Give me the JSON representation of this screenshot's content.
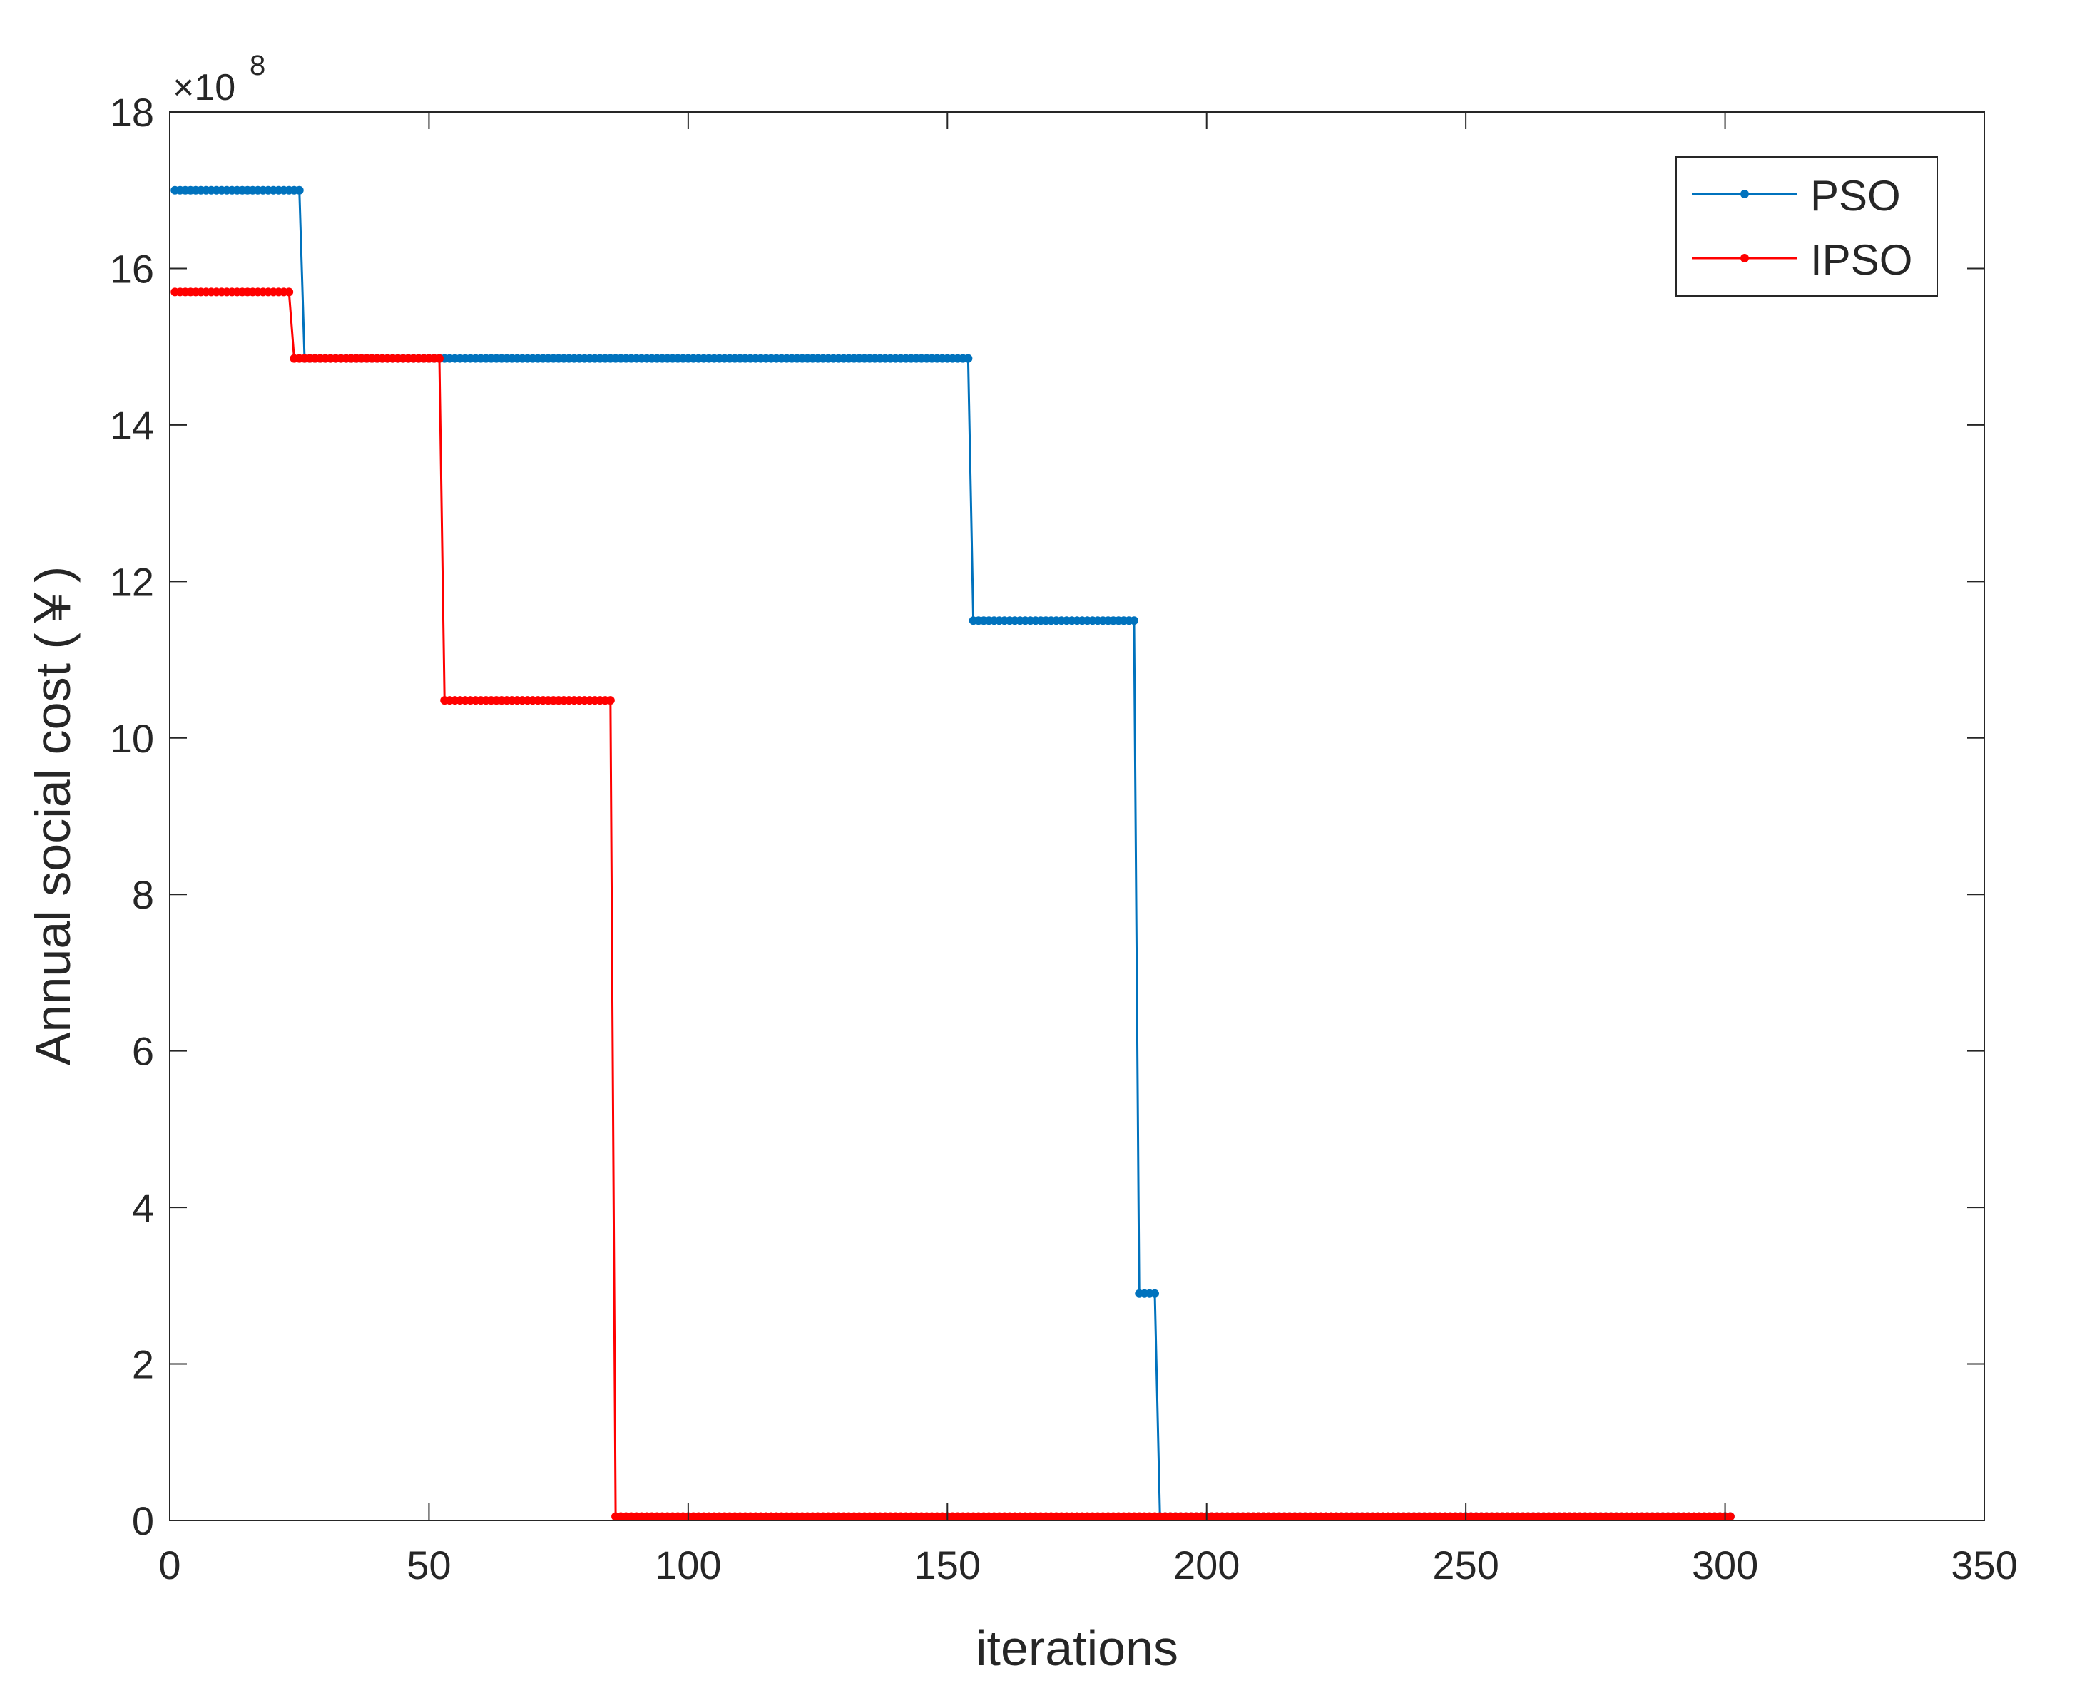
{
  "chart_data": {
    "type": "line",
    "title": "",
    "xlabel": "iterations",
    "ylabel": "Annual social cost (￥)",
    "y_exponent_label": "×10",
    "y_exponent_power": "8",
    "y_scale_factor": 100000000,
    "xlim": [
      0,
      350
    ],
    "ylim": [
      0,
      18
    ],
    "xticks": [
      0,
      50,
      100,
      150,
      200,
      250,
      300,
      350
    ],
    "yticks": [
      0,
      2,
      4,
      6,
      8,
      10,
      12,
      14,
      16,
      18
    ],
    "grid": false,
    "legend_position": "top-right",
    "series": [
      {
        "name": "PSO",
        "color": "#0072BD",
        "x_range": [
          1,
          301
        ],
        "steps": [
          {
            "from": 1,
            "to": 25,
            "value": 17.0
          },
          {
            "from": 26,
            "to": 154,
            "value": 14.85
          },
          {
            "from": 155,
            "to": 186,
            "value": 11.5
          },
          {
            "from": 187,
            "to": 190,
            "value": 2.9
          },
          {
            "from": 191,
            "to": 301,
            "value": 0.05
          }
        ]
      },
      {
        "name": "IPSO",
        "color": "#FF0000",
        "x_range": [
          1,
          301
        ],
        "steps": [
          {
            "from": 1,
            "to": 23,
            "value": 15.7
          },
          {
            "from": 24,
            "to": 52,
            "value": 14.85
          },
          {
            "from": 53,
            "to": 85,
            "value": 10.48
          },
          {
            "from": 86,
            "to": 301,
            "value": 0.05
          }
        ]
      }
    ]
  }
}
